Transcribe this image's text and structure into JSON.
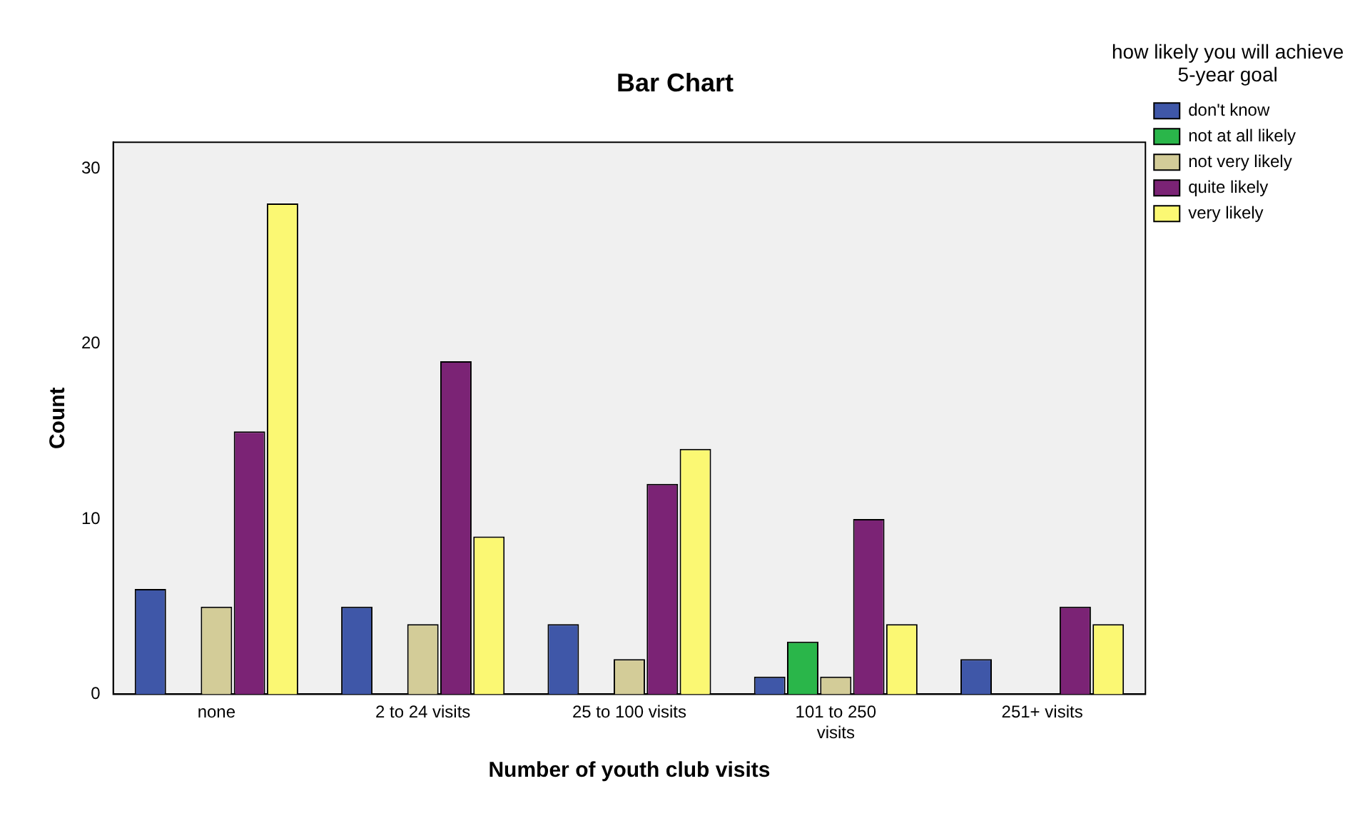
{
  "chart_data": {
    "type": "bar",
    "title": "Bar Chart",
    "xlabel": "Number of youth club visits",
    "ylabel": "Count",
    "legend_title": "how likely you will achieve 5-year goal",
    "categories": [
      "none",
      "2 to 24 visits",
      "25 to 100 visits",
      "101 to 250 visits",
      "251+ visits"
    ],
    "series": [
      {
        "name": "don't know",
        "color": "#3f57a8",
        "values": [
          6,
          5,
          4,
          1,
          2
        ]
      },
      {
        "name": "not at all likely",
        "color": "#2ab64a",
        "values": [
          null,
          null,
          null,
          3,
          null
        ]
      },
      {
        "name": "not very likely",
        "color": "#d3cc98",
        "values": [
          5,
          4,
          2,
          1,
          null
        ]
      },
      {
        "name": "quite likely",
        "color": "#7b2375",
        "values": [
          15,
          19,
          12,
          10,
          5
        ]
      },
      {
        "name": "very likely",
        "color": "#fbf873",
        "values": [
          28,
          9,
          14,
          4,
          4
        ]
      }
    ],
    "ylim": [
      0,
      31.5
    ],
    "yticks": [
      0,
      10,
      20,
      30
    ],
    "grid": false,
    "legend": "top right"
  }
}
